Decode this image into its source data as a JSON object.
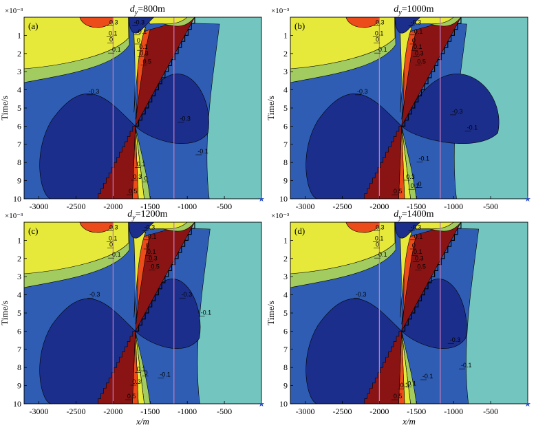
{
  "chart_data": {
    "type": "heatmap",
    "xlabel": "x/m",
    "ylabel": "Time/s",
    "y_scale_note": "×10⁻³",
    "xlim": [
      -3200,
      0
    ],
    "ylim": [
      0,
      10
    ],
    "xticks": [
      -3000,
      -2500,
      -2000,
      -1500,
      -1000,
      -500
    ],
    "yticks": [
      1,
      2,
      3,
      4,
      5,
      6,
      7,
      8,
      9,
      10
    ],
    "vertical_lines_x": [
      -2000,
      -1180
    ],
    "colormap": [
      "#1c2e8c",
      "#2e5db3",
      "#73c5bf",
      "#a3cc60",
      "#e6e93a",
      "#ec4b1a",
      "#8a1414"
    ],
    "contour_levels": [
      "-0.3",
      "-0.1",
      "0",
      "0.1",
      "0.3",
      "0.5"
    ],
    "panels": [
      {
        "label": "(a)",
        "title_prefix": "d",
        "title_sub": "y",
        "title_value": "=800m",
        "contour_labels": [
          {
            "text": "0.3",
            "x": -2050,
            "y": 0.4
          },
          {
            "text": "0.1",
            "x": -2060,
            "y": 1.0
          },
          {
            "text": "0",
            "x": -2050,
            "y": 1.35
          },
          {
            "text": "-0.1",
            "x": -2040,
            "y": 1.9
          },
          {
            "text": "-0.3",
            "x": -1720,
            "y": 0.4
          },
          {
            "text": "-0.1",
            "x": -1690,
            "y": 0.9
          },
          {
            "text": "0",
            "x": -1680,
            "y": 1.4
          },
          {
            "text": "0.1",
            "x": -1650,
            "y": 1.75
          },
          {
            "text": "0.3",
            "x": -1640,
            "y": 2.1
          },
          {
            "text": "0.5",
            "x": -1600,
            "y": 2.55
          },
          {
            "text": "-0.3",
            "x": -2330,
            "y": 4.2
          },
          {
            "text": "-0.3",
            "x": -1100,
            "y": 5.7
          },
          {
            "text": "-0.1",
            "x": -860,
            "y": 7.5
          },
          {
            "text": "0.1",
            "x": -1680,
            "y": 8.2
          },
          {
            "text": "0.3",
            "x": -1730,
            "y": 8.9
          },
          {
            "text": "0",
            "x": -1580,
            "y": 9.0
          },
          {
            "text": "0.5",
            "x": -1790,
            "y": 9.7
          }
        ]
      },
      {
        "label": "(b)",
        "title_prefix": "d",
        "title_sub": "y",
        "title_value": "=1000m",
        "contour_labels": [
          {
            "text": "0.3",
            "x": -2050,
            "y": 0.4
          },
          {
            "text": "0.1",
            "x": -2060,
            "y": 1.0
          },
          {
            "text": "0",
            "x": -2050,
            "y": 1.35
          },
          {
            "text": "-0.1",
            "x": -2040,
            "y": 1.9
          },
          {
            "text": "-0.3",
            "x": -1580,
            "y": 0.4
          },
          {
            "text": "-0.1",
            "x": -1560,
            "y": 0.9
          },
          {
            "text": "0",
            "x": -1560,
            "y": 1.4
          },
          {
            "text": "0.1",
            "x": -1540,
            "y": 1.75
          },
          {
            "text": "0.3",
            "x": -1520,
            "y": 2.1
          },
          {
            "text": "0.5",
            "x": -1490,
            "y": 2.55
          },
          {
            "text": "-0.3",
            "x": -2300,
            "y": 4.2
          },
          {
            "text": "-0.3",
            "x": -1020,
            "y": 5.3
          },
          {
            "text": "-0.1",
            "x": -820,
            "y": 6.2
          },
          {
            "text": "-0.1",
            "x": -1470,
            "y": 7.9
          },
          {
            "text": "0.3",
            "x": -1640,
            "y": 8.9
          },
          {
            "text": "0.1",
            "x": -1580,
            "y": 9.4
          },
          {
            "text": "0",
            "x": -1480,
            "y": 9.3
          },
          {
            "text": "0.5",
            "x": -1810,
            "y": 9.7
          }
        ]
      },
      {
        "label": "(c)",
        "title_prefix": "d",
        "title_sub": "y",
        "title_value": "=1200m",
        "contour_labels": [
          {
            "text": "0.3",
            "x": -2050,
            "y": 0.4
          },
          {
            "text": "0.1",
            "x": -2060,
            "y": 1.0
          },
          {
            "text": "0",
            "x": -2050,
            "y": 1.35
          },
          {
            "text": "-0.1",
            "x": -2040,
            "y": 1.9
          },
          {
            "text": "-0.3",
            "x": -1580,
            "y": 0.4
          },
          {
            "text": "-0.1",
            "x": -1560,
            "y": 0.9
          },
          {
            "text": "0",
            "x": -1560,
            "y": 1.4
          },
          {
            "text": "0.1",
            "x": -1540,
            "y": 1.75
          },
          {
            "text": "0.3",
            "x": -1520,
            "y": 2.1
          },
          {
            "text": "0.5",
            "x": -1490,
            "y": 2.55
          },
          {
            "text": "-0.3",
            "x": -2320,
            "y": 4.1
          },
          {
            "text": "-0.3",
            "x": -1080,
            "y": 4.1
          },
          {
            "text": "-0.1",
            "x": -820,
            "y": 5.1
          },
          {
            "text": "0.1",
            "x": -1680,
            "y": 8.2
          },
          {
            "text": "0",
            "x": -1580,
            "y": 8.4
          },
          {
            "text": "-0.1",
            "x": -1370,
            "y": 8.5
          },
          {
            "text": "0.3",
            "x": -1740,
            "y": 8.9
          },
          {
            "text": "0.5",
            "x": -1810,
            "y": 9.7
          }
        ]
      },
      {
        "label": "(d)",
        "title_prefix": "d",
        "title_sub": "y",
        "title_value": "=1400m",
        "contour_labels": [
          {
            "text": "0.3",
            "x": -2050,
            "y": 0.4
          },
          {
            "text": "0.1",
            "x": -2060,
            "y": 1.0
          },
          {
            "text": "0",
            "x": -2050,
            "y": 1.35
          },
          {
            "text": "-0.1",
            "x": -2040,
            "y": 1.9
          },
          {
            "text": "-0.3",
            "x": -1580,
            "y": 0.4
          },
          {
            "text": "-0.1",
            "x": -1560,
            "y": 0.9
          },
          {
            "text": "0",
            "x": -1560,
            "y": 1.4
          },
          {
            "text": "0.1",
            "x": -1540,
            "y": 1.75
          },
          {
            "text": "0.3",
            "x": -1520,
            "y": 2.1
          },
          {
            "text": "0.5",
            "x": -1490,
            "y": 2.55
          },
          {
            "text": "-0.3",
            "x": -2320,
            "y": 4.1
          },
          {
            "text": "-0.3",
            "x": -1050,
            "y": 6.6
          },
          {
            "text": "-0.1",
            "x": -900,
            "y": 8.0
          },
          {
            "text": "-0.1",
            "x": -1420,
            "y": 8.6
          },
          {
            "text": "0.1",
            "x": -1620,
            "y": 9.0
          },
          {
            "text": "0.3",
            "x": -1720,
            "y": 9.1
          },
          {
            "text": "0.5",
            "x": -1810,
            "y": 9.7
          }
        ]
      }
    ]
  }
}
